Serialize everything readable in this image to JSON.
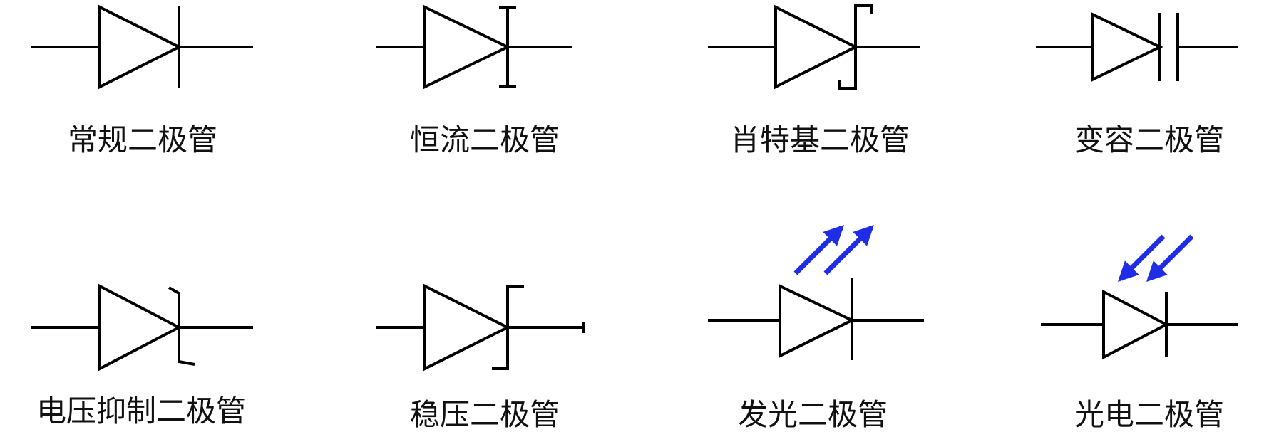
{
  "colors": {
    "stroke": "#000000",
    "arrow": "#1f2ee6"
  },
  "diagrams": [
    {
      "label": "常规二极管",
      "symbol": "regular-diode-icon"
    },
    {
      "label": "恒流二极管",
      "symbol": "constant-current-diode-icon"
    },
    {
      "label": "肖特基二极管",
      "symbol": "schottky-diode-icon"
    },
    {
      "label": "变容二极管",
      "symbol": "varactor-diode-icon"
    },
    {
      "label": "电压抑制二极管",
      "symbol": "tvs-diode-icon"
    },
    {
      "label": "稳压二极管",
      "symbol": "zener-diode-icon"
    },
    {
      "label": "发光二极管",
      "symbol": "led-icon"
    },
    {
      "label": "光电二极管",
      "symbol": "photodiode-icon"
    }
  ]
}
